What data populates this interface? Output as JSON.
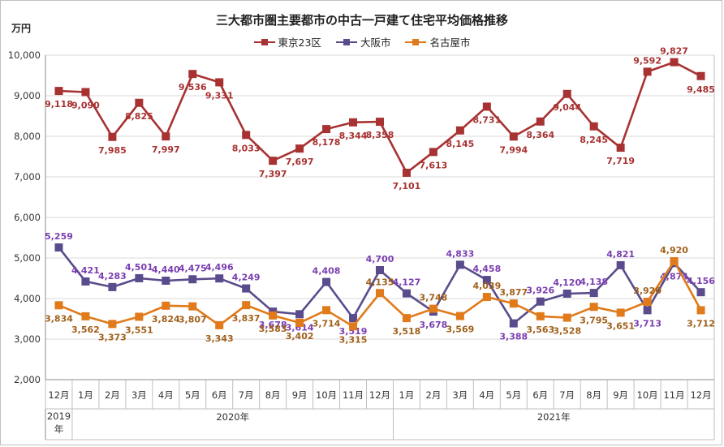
{
  "title": "三大都市圏主要都市の中古一戸建て住宅平均価格推移",
  "unit": "万円",
  "colors": {
    "tokyo": "#a83232",
    "osaka": "#5a4c8c",
    "nagoya": "#e07a1a",
    "osaka_label": "#7a3fb0",
    "nagoya_label": "#a0601a"
  },
  "chart_data": {
    "type": "line",
    "title": "三大都市圏主要都市の中古一戸建て住宅平均価格推移",
    "ylabel": "万円",
    "ylim": [
      2000,
      10000
    ],
    "yticks": [
      "2,000",
      "3,000",
      "4,000",
      "5,000",
      "6,000",
      "7,000",
      "8,000",
      "9,000",
      "10,000"
    ],
    "grid": true,
    "legend": "top",
    "categories": [
      "12月",
      "1月",
      "2月",
      "3月",
      "4月",
      "5月",
      "6月",
      "7月",
      "8月",
      "9月",
      "10月",
      "11月",
      "12月",
      "1月",
      "2月",
      "3月",
      "4月",
      "5月",
      "6月",
      "7月",
      "8月",
      "9月",
      "10月",
      "11月",
      "12月"
    ],
    "year_groups": [
      {
        "label": "2019\n年",
        "start": 0,
        "end": 0
      },
      {
        "label": "2020年",
        "start": 1,
        "end": 12
      },
      {
        "label": "2021年",
        "start": 13,
        "end": 24
      }
    ],
    "series": [
      {
        "name": "東京23区",
        "values": [
          9118,
          9090,
          7985,
          8825,
          7997,
          9536,
          9331,
          8033,
          7397,
          7697,
          8178,
          8344,
          8358,
          7101,
          7613,
          8145,
          8731,
          7994,
          8364,
          9044,
          8245,
          7719,
          9592,
          9827,
          9485
        ],
        "labels": [
          "9,118",
          "9,090",
          "7,985",
          "8,825",
          "7,997",
          "9,536",
          "9,331",
          "8,033",
          "7,397",
          "7,697",
          "8,178",
          "8,344",
          "8,358",
          "7,101",
          "7,613",
          "8,145",
          "8,731",
          "7,994",
          "8,364",
          "9,044",
          "8,245",
          "7,719",
          "9,592",
          "9,827",
          "9,485"
        ]
      },
      {
        "name": "大阪市",
        "values": [
          5259,
          4421,
          4283,
          4501,
          4440,
          4475,
          4496,
          4249,
          3678,
          3614,
          4408,
          3519,
          4700,
          4127,
          3678,
          4833,
          4458,
          3388,
          3926,
          4120,
          4138,
          4821,
          3713,
          4874,
          4156
        ],
        "labels": [
          "5,259",
          "4,421",
          "4,283",
          "4,501",
          "4,440",
          "4,475",
          "4,496",
          "4,249",
          "3,678",
          "3,614",
          "4,408",
          "3,519",
          "4,700",
          "4,127",
          "3,678",
          "4,833",
          "4,458",
          "3,388",
          "3,926",
          "4,120",
          "4,138",
          "4,821",
          "3,713",
          "4,874",
          "4,156"
        ]
      },
      {
        "name": "名古屋市",
        "values": [
          3834,
          3562,
          3373,
          3551,
          3824,
          3807,
          3343,
          3837,
          3583,
          3402,
          3714,
          3315,
          4135,
          3518,
          3748,
          3569,
          4039,
          3877,
          3563,
          3528,
          3795,
          3651,
          3920,
          4920,
          3712
        ],
        "labels": [
          "3,834",
          "3,562",
          "3,373",
          "3,551",
          "3,824",
          "3,807",
          "3,343",
          "3,837",
          "3,583",
          "3,402",
          "3,714",
          "3,315",
          "4,135",
          "3,518",
          "3,748",
          "3,569",
          "4,039",
          "3,877",
          "3,563",
          "3,528",
          "3,795",
          "3,651",
          "3,920",
          "4,920",
          "3,712"
        ]
      }
    ]
  }
}
